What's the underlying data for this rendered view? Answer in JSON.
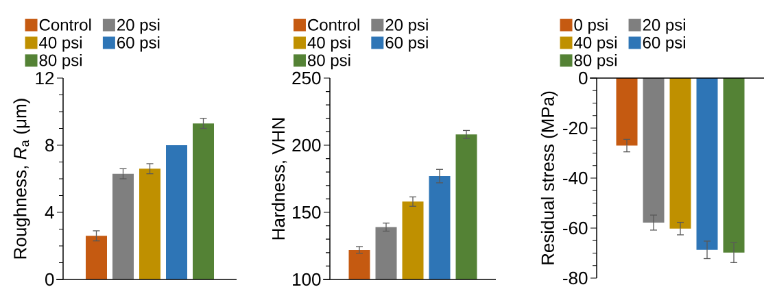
{
  "chart_data": [
    {
      "type": "bar",
      "ylabel": "Roughness, *R*$_{a}$ (μm)",
      "categories": [
        null
      ],
      "legend": "top left",
      "series": [
        {
          "name": "Control",
          "color": "#c55a11",
          "values": [
            2.6
          ],
          "errors": [
            0.3
          ]
        },
        {
          "name": "20 psi",
          "color": "#7f7f7f",
          "values": [
            6.3
          ],
          "errors": [
            0.3
          ]
        },
        {
          "name": "40 psi",
          "color": "#bf9000",
          "values": [
            6.6
          ],
          "errors": [
            0.3
          ]
        },
        {
          "name": "60 psi",
          "color": "#2e75b6",
          "values": [
            8.0
          ],
          "errors": [
            null
          ]
        },
        {
          "name": "80 psi",
          "color": "#548235",
          "values": [
            9.3
          ],
          "errors": [
            0.3
          ]
        }
      ],
      "ylim": [
        0,
        12
      ],
      "yticks": [
        0,
        {
          "value": 1,
          "label": null
        },
        {
          "value": 2,
          "label": null
        },
        {
          "value": 3,
          "label": null
        },
        4,
        {
          "value": 5,
          "label": null
        },
        {
          "value": 6,
          "label": null
        },
        {
          "value": 7,
          "label": null
        },
        8,
        {
          "value": 9,
          "label": null
        },
        {
          "value": 10,
          "label": null
        },
        {
          "value": 11,
          "label": null
        },
        12
      ]
    },
    {
      "type": "bar",
      "ylabel": "Hardness, VHN",
      "categories": [
        null
      ],
      "legend": "top left",
      "series": [
        {
          "name": "Control",
          "color": "#c55a11",
          "values": [
            122
          ],
          "errors": [
            2.5
          ]
        },
        {
          "name": "20 psi",
          "color": "#7f7f7f",
          "values": [
            139
          ],
          "errors": [
            3
          ]
        },
        {
          "name": "40 psi",
          "color": "#bf9000",
          "values": [
            158
          ],
          "errors": [
            3.5
          ]
        },
        {
          "name": "60 psi",
          "color": "#2e75b6",
          "values": [
            177
          ],
          "errors": [
            5
          ]
        },
        {
          "name": "80 psi",
          "color": "#548235",
          "values": [
            208
          ],
          "errors": [
            3
          ]
        }
      ],
      "ylim": [
        100,
        250
      ],
      "yticks": [
        100,
        {
          "value": 110,
          "label": null
        },
        {
          "value": 120,
          "label": null
        },
        {
          "value": 130,
          "label": null
        },
        {
          "value": 140,
          "label": null
        },
        150,
        {
          "value": 160,
          "label": null
        },
        {
          "value": 170,
          "label": null
        },
        {
          "value": 180,
          "label": null
        },
        {
          "value": 190,
          "label": null
        },
        200,
        {
          "value": 210,
          "label": null
        },
        {
          "value": 220,
          "label": null
        },
        {
          "value": 230,
          "label": null
        },
        {
          "value": 240,
          "label": null
        },
        250
      ]
    },
    {
      "type": "bar",
      "ylabel": "Residual stress (MPa)",
      "categories": [
        null
      ],
      "legend": "top left",
      "series": [
        {
          "name": "0 psi",
          "color": "#c55a11",
          "values": [
            -27
          ],
          "errors": [
            2.5
          ]
        },
        {
          "name": "20 psi",
          "color": "#7f7f7f",
          "values": [
            -57.8
          ],
          "errors": [
            3
          ]
        },
        {
          "name": "40 psi",
          "color": "#bf9000",
          "values": [
            -60.2
          ],
          "errors": [
            2.5
          ]
        },
        {
          "name": "60 psi",
          "color": "#2e75b6",
          "values": [
            -68.7
          ],
          "errors": [
            3.5
          ]
        },
        {
          "name": "80  psi",
          "color": "#548235",
          "values": [
            -69.8
          ],
          "errors": [
            4
          ]
        }
      ],
      "ylim": [
        -80,
        0
      ],
      "yticks": [
        -80,
        {
          "value": -75,
          "label": null
        },
        {
          "value": -70,
          "label": null
        },
        {
          "value": -65,
          "label": null
        },
        -60,
        {
          "value": -55,
          "label": null
        },
        {
          "value": -50,
          "label": null
        },
        {
          "value": -45,
          "label": null
        },
        -40,
        {
          "value": -35,
          "label": null
        },
        {
          "value": -30,
          "label": null
        },
        {
          "value": -25,
          "label": null
        },
        -20,
        {
          "value": -15,
          "label": null
        },
        {
          "value": -10,
          "label": null
        },
        {
          "value": -5,
          "label": null
        },
        0
      ]
    }
  ]
}
